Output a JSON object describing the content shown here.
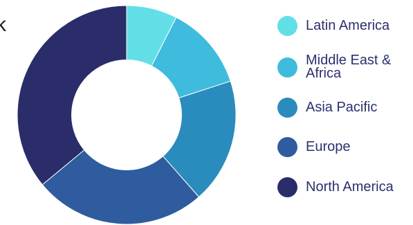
{
  "partial_glyph": "k",
  "chart_data": {
    "type": "pie",
    "donut": true,
    "categories": [
      "Latin America",
      "Middle East & Africa",
      "Asia Pacific",
      "Europe",
      "North America"
    ],
    "values": [
      7.5,
      12.5,
      18.5,
      25.5,
      36
    ],
    "colors": [
      "#62dfe6",
      "#3fbcdd",
      "#2a8cbd",
      "#2e5c9e",
      "#2a2d6a"
    ],
    "legend_position": "right"
  },
  "legend": {
    "items": [
      {
        "label": "Latin America",
        "color": "#62dfe6"
      },
      {
        "label": "Middle East & Africa",
        "color": "#3fbcdd"
      },
      {
        "label": "Asia Pacific",
        "color": "#2a8cbd"
      },
      {
        "label": "Europe",
        "color": "#2e5c9e"
      },
      {
        "label": "North America",
        "color": "#2a2d6a"
      }
    ]
  }
}
